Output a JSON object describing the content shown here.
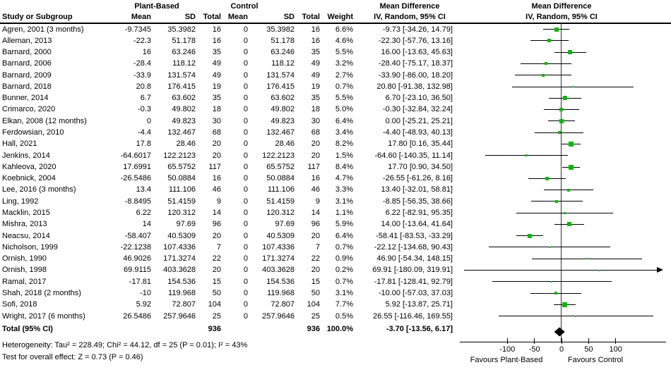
{
  "header": {
    "study_col": "Study or Subgroup",
    "group1": "Plant-Based",
    "group2": "Control",
    "mean": "Mean",
    "sd": "SD",
    "total": "Total",
    "weight": "Weight",
    "md_title": "Mean Difference",
    "md_sub": "IV, Random, 95% CI",
    "plot_title": "Mean Difference",
    "plot_sub": "IV, Random, 95% CI"
  },
  "chart_data": {
    "type": "scatter",
    "subtype": "forest-plot",
    "effect_measure": "Mean Difference, IV, Random, 95% CI",
    "x_ticks": [
      -100,
      -50,
      0,
      50,
      100
    ],
    "xlim": [
      -187,
      193
    ],
    "favours_left": "Favours Plant-Based",
    "favours_right": "Favours Control",
    "studies": [
      {
        "name": "Agren, 2001 (3 months)",
        "mean1": "-9.7345",
        "sd1": "35.3982",
        "n1": "16",
        "mean2": "0",
        "sd2": "35.3982",
        "n2": "16",
        "weight": "6.6%",
        "ci": "-9.73 [-34.26, 14.79]",
        "md": -9.73,
        "lo": -34.26,
        "hi": 14.79,
        "w": 6.6
      },
      {
        "name": "Alleman, 2013",
        "mean1": "-22.3",
        "sd1": "51.178",
        "n1": "16",
        "mean2": "0",
        "sd2": "51.178",
        "n2": "16",
        "weight": "4.6%",
        "ci": "-22.30 [-57.76, 13.16]",
        "md": -22.3,
        "lo": -57.76,
        "hi": 13.16,
        "w": 4.6
      },
      {
        "name": "Barnard, 2000",
        "mean1": "16",
        "sd1": "63.246",
        "n1": "35",
        "mean2": "0",
        "sd2": "63.246",
        "n2": "35",
        "weight": "5.5%",
        "ci": "16.00 [-13.63, 45.63]",
        "md": 16.0,
        "lo": -13.63,
        "hi": 45.63,
        "w": 5.5
      },
      {
        "name": "Barnard, 2006",
        "mean1": "-28.4",
        "sd1": "118.12",
        "n1": "49",
        "mean2": "0",
        "sd2": "118.12",
        "n2": "49",
        "weight": "3.2%",
        "ci": "-28.40 [-75.17, 18.37]",
        "md": -28.4,
        "lo": -75.17,
        "hi": 18.37,
        "w": 3.2
      },
      {
        "name": "Barnard, 2009",
        "mean1": "-33.9",
        "sd1": "131.574",
        "n1": "49",
        "mean2": "0",
        "sd2": "131.574",
        "n2": "49",
        "weight": "2.7%",
        "ci": "-33.90 [-86.00, 18.20]",
        "md": -33.9,
        "lo": -86.0,
        "hi": 18.2,
        "w": 2.7
      },
      {
        "name": "Barnard, 2018",
        "mean1": "20.8",
        "sd1": "176.415",
        "n1": "19",
        "mean2": "0",
        "sd2": "176.415",
        "n2": "19",
        "weight": "0.7%",
        "ci": "20.80 [-91.38, 132.98]",
        "md": 20.8,
        "lo": -91.38,
        "hi": 132.98,
        "w": 0.7
      },
      {
        "name": "Bunner, 2014",
        "mean1": "6.7",
        "sd1": "63.602",
        "n1": "35",
        "mean2": "0",
        "sd2": "63.602",
        "n2": "35",
        "weight": "5.5%",
        "ci": "6.70 [-23.10, 36.50]",
        "md": 6.7,
        "lo": -23.1,
        "hi": 36.5,
        "w": 5.5
      },
      {
        "name": "Crimarco, 2020",
        "mean1": "-0.3",
        "sd1": "49.802",
        "n1": "18",
        "mean2": "0",
        "sd2": "49.802",
        "n2": "18",
        "weight": "5.0%",
        "ci": "-0.30 [-32.84, 32.24]",
        "md": -0.3,
        "lo": -32.84,
        "hi": 32.24,
        "w": 5.0
      },
      {
        "name": "Elkan, 2008 (12 months)",
        "mean1": "0",
        "sd1": "49.823",
        "n1": "30",
        "mean2": "0",
        "sd2": "49.823",
        "n2": "30",
        "weight": "6.4%",
        "ci": "0.00 [-25.21, 25.21]",
        "md": 0.0,
        "lo": -25.21,
        "hi": 25.21,
        "w": 6.4
      },
      {
        "name": "Ferdowsian, 2010",
        "mean1": "-4.4",
        "sd1": "132.467",
        "n1": "68",
        "mean2": "0",
        "sd2": "132.467",
        "n2": "68",
        "weight": "3.4%",
        "ci": "-4.40 [-48.93, 40.13]",
        "md": -4.4,
        "lo": -48.93,
        "hi": 40.13,
        "w": 3.4
      },
      {
        "name": "Hall, 2021",
        "mean1": "17.8",
        "sd1": "28.46",
        "n1": "20",
        "mean2": "0",
        "sd2": "28.46",
        "n2": "20",
        "weight": "8.2%",
        "ci": "17.80 [0.16, 35.44]",
        "md": 17.8,
        "lo": 0.16,
        "hi": 35.44,
        "w": 8.2
      },
      {
        "name": "Jenkins, 2014",
        "mean1": "-64.6017",
        "sd1": "122.2123",
        "n1": "20",
        "mean2": "0",
        "sd2": "122.2123",
        "n2": "20",
        "weight": "1.5%",
        "ci": "-64.60 [-140.35, 11.14]",
        "md": -64.6,
        "lo": -140.35,
        "hi": 11.14,
        "w": 1.5
      },
      {
        "name": "Kahleova, 2020",
        "mean1": "17.6991",
        "sd1": "65.5752",
        "n1": "117",
        "mean2": "0",
        "sd2": "65.5752",
        "n2": "117",
        "weight": "8.4%",
        "ci": "17.70 [0.90, 34.50]",
        "md": 17.7,
        "lo": 0.9,
        "hi": 34.5,
        "w": 8.4
      },
      {
        "name": "Koebnick, 2004",
        "mean1": "-26.5486",
        "sd1": "50.0884",
        "n1": "16",
        "mean2": "0",
        "sd2": "50.0884",
        "n2": "16",
        "weight": "4.7%",
        "ci": "-26.55 [-61.26, 8.16]",
        "md": -26.55,
        "lo": -61.26,
        "hi": 8.16,
        "w": 4.7
      },
      {
        "name": "Lee, 2016 (3 months)",
        "mean1": "13.4",
        "sd1": "111.106",
        "n1": "46",
        "mean2": "0",
        "sd2": "111.106",
        "n2": "46",
        "weight": "3.3%",
        "ci": "13.40 [-32.01, 58.81]",
        "md": 13.4,
        "lo": -32.01,
        "hi": 58.81,
        "w": 3.3
      },
      {
        "name": "Ling, 1992",
        "mean1": "-8.8495",
        "sd1": "51.4159",
        "n1": "9",
        "mean2": "0",
        "sd2": "51.4159",
        "n2": "9",
        "weight": "3.1%",
        "ci": "-8.85 [-56.35, 38.66]",
        "md": -8.85,
        "lo": -56.35,
        "hi": 38.66,
        "w": 3.1
      },
      {
        "name": "Macklin, 2015",
        "mean1": "6.22",
        "sd1": "120.312",
        "n1": "14",
        "mean2": "0",
        "sd2": "120.312",
        "n2": "14",
        "weight": "1.1%",
        "ci": "6.22 [-82.91, 95.35]",
        "md": 6.22,
        "lo": -82.91,
        "hi": 95.35,
        "w": 1.1
      },
      {
        "name": "Mishra, 2013",
        "mean1": "14",
        "sd1": "97.69",
        "n1": "96",
        "mean2": "0",
        "sd2": "97.69",
        "n2": "96",
        "weight": "5.9%",
        "ci": "14.00 [-13.64, 41.64]",
        "md": 14.0,
        "lo": -13.64,
        "hi": 41.64,
        "w": 5.9
      },
      {
        "name": "Neacsu, 2014",
        "mean1": "-58.407",
        "sd1": "40.5309",
        "n1": "20",
        "mean2": "0",
        "sd2": "40.5309",
        "n2": "20",
        "weight": "6.4%",
        "ci": "-58.41 [-83.53, -33.29]",
        "md": -58.41,
        "lo": -83.53,
        "hi": -33.29,
        "w": 6.4
      },
      {
        "name": "Nicholson, 1999",
        "mean1": "-22.1238",
        "sd1": "107.4336",
        "n1": "7",
        "mean2": "0",
        "sd2": "107.4336",
        "n2": "7",
        "weight": "0.7%",
        "ci": "-22.12 [-134.68, 90.43]",
        "md": -22.12,
        "lo": -134.68,
        "hi": 90.43,
        "w": 0.7
      },
      {
        "name": "Ornish, 1990",
        "mean1": "46.9026",
        "sd1": "171.3274",
        "n1": "22",
        "mean2": "0",
        "sd2": "171.3274",
        "n2": "22",
        "weight": "0.9%",
        "ci": "46.90 [-54.34, 148.15]",
        "md": 46.9,
        "lo": -54.34,
        "hi": 148.15,
        "w": 0.9
      },
      {
        "name": "Ornish, 1998",
        "mean1": "69.9115",
        "sd1": "403.3628",
        "n1": "20",
        "mean2": "0",
        "sd2": "403.3628",
        "n2": "20",
        "weight": "0.2%",
        "ci": "69.91 [-180.09, 319.91]",
        "md": 69.91,
        "lo": -180.09,
        "hi": 319.91,
        "w": 0.2
      },
      {
        "name": "Ramal, 2017",
        "mean1": "-17.81",
        "sd1": "154.536",
        "n1": "15",
        "mean2": "0",
        "sd2": "154.536",
        "n2": "15",
        "weight": "0.7%",
        "ci": "-17.81 [-128.41, 92.79]",
        "md": -17.81,
        "lo": -128.41,
        "hi": 92.79,
        "w": 0.7
      },
      {
        "name": "Shah, 2018 (2 months)",
        "mean1": "-10",
        "sd1": "119.968",
        "n1": "50",
        "mean2": "0",
        "sd2": "119.968",
        "n2": "50",
        "weight": "3.1%",
        "ci": "-10.00 [-57.03, 37.03]",
        "md": -10.0,
        "lo": -57.03,
        "hi": 37.03,
        "w": 3.1
      },
      {
        "name": "Sofi, 2018",
        "mean1": "5.92",
        "sd1": "72.807",
        "n1": "104",
        "mean2": "0",
        "sd2": "72.807",
        "n2": "104",
        "weight": "7.7%",
        "ci": "5.92 [-13.87, 25.71]",
        "md": 5.92,
        "lo": -13.87,
        "hi": 25.71,
        "w": 7.7
      },
      {
        "name": "Wright, 2017 (6 months)",
        "mean1": "26.5486",
        "sd1": "257.9646",
        "n1": "25",
        "mean2": "0",
        "sd2": "257.9646",
        "n2": "25",
        "weight": "0.5%",
        "ci": "26.55 [-116.46, 169.55]",
        "md": 26.55,
        "lo": -116.46,
        "hi": 169.55,
        "w": 0.5
      }
    ],
    "pooled": {
      "label": "Total (95% CI)",
      "n1": "936",
      "n2": "936",
      "weight": "100.0%",
      "ci": "-3.70 [-13.56, 6.17]",
      "md": -3.7,
      "lo": -13.56,
      "hi": 6.17
    }
  },
  "footnotes": {
    "heterogeneity": "Heterogeneity: Tau² = 228.49; Chi² = 44.12, df = 25 (P = 0.01); I² = 43%",
    "overall_effect": "Test for overall effect: Z = 0.73 (P = 0.46)"
  },
  "colors": {
    "marker": "#00bb00",
    "diamond": "#000000",
    "line": "#000000",
    "background": "#ffffff"
  }
}
